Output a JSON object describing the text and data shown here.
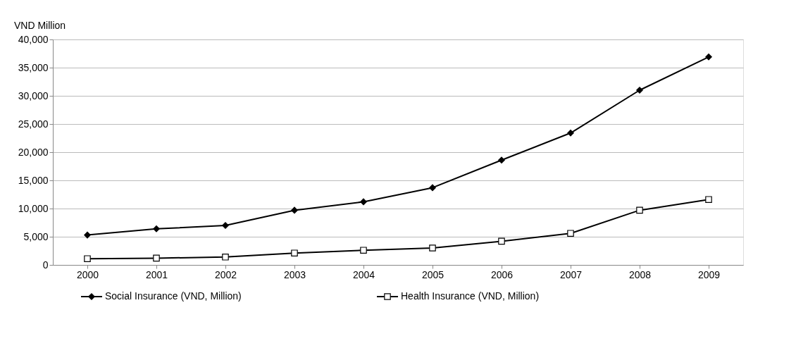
{
  "chart_data": {
    "type": "line",
    "ylabel": "VND Million",
    "categories": [
      "2000",
      "2001",
      "2002",
      "2003",
      "2004",
      "2005",
      "2006",
      "2007",
      "2008",
      "2009"
    ],
    "series": [
      {
        "name": "Social Insurance (VND, Million)",
        "color": "#000000",
        "marker": "diamond",
        "values": [
          5300,
          6400,
          7000,
          9700,
          11200,
          13700,
          18600,
          23400,
          31000,
          36900
        ]
      },
      {
        "name": "Health Insurance (VND, Million)",
        "color": "#000000",
        "marker": "square",
        "values": [
          1100,
          1200,
          1400,
          2100,
          2600,
          3000,
          4200,
          5600,
          9700,
          11600
        ]
      }
    ],
    "ylim": [
      0,
      40000
    ],
    "yticks": [
      0,
      {
        "value": 5000,
        "label": "5,000"
      },
      {
        "value": 10000,
        "label": "10,000"
      },
      {
        "value": 15000,
        "label": "15,000"
      },
      {
        "value": 20000,
        "label": "20,000"
      },
      {
        "value": 25000,
        "label": "25,000"
      },
      {
        "value": 30000,
        "label": "30,000"
      },
      {
        "value": 35000,
        "label": "35,000"
      },
      {
        "value": 40000,
        "label": "40,000"
      }
    ],
    "grid": "y",
    "legend": "bottom",
    "line_style": "solid"
  }
}
